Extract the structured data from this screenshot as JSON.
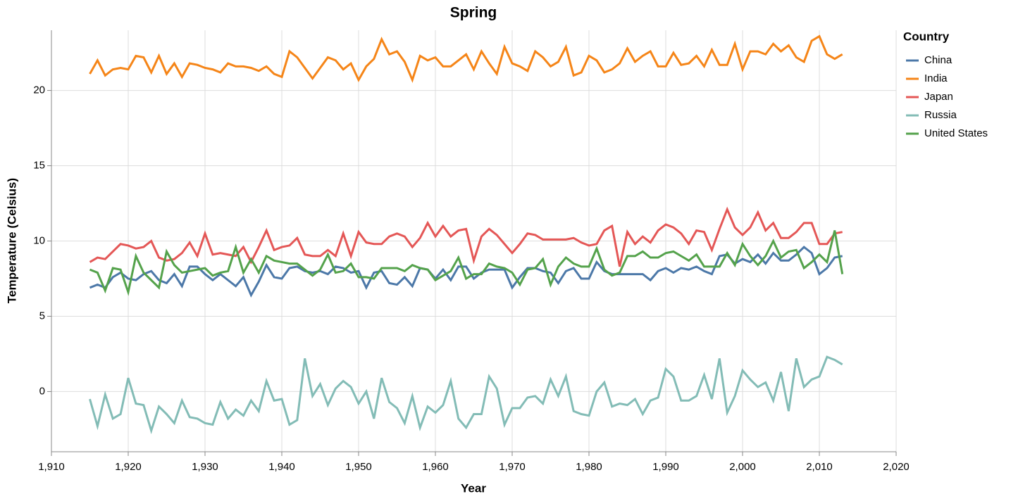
{
  "chart_data": {
    "type": "line",
    "title": "Spring",
    "x_label": "Year",
    "y_label": "Temperature (Celsius)",
    "legend_title": "Country",
    "legend": "top-right",
    "grid": true,
    "xlim": [
      1910,
      2020
    ],
    "ylim": [
      -4,
      24
    ],
    "xticks": [
      {
        "value": 1910,
        "label": "1,910"
      },
      {
        "value": 1920,
        "label": "1,920"
      },
      {
        "value": 1930,
        "label": "1,930"
      },
      {
        "value": 1940,
        "label": "1,940"
      },
      {
        "value": 1950,
        "label": "1,950"
      },
      {
        "value": 1960,
        "label": "1,960"
      },
      {
        "value": 1970,
        "label": "1,970"
      },
      {
        "value": 1980,
        "label": "1,980"
      },
      {
        "value": 1990,
        "label": "1,990"
      },
      {
        "value": 2000,
        "label": "2,000"
      },
      {
        "value": 2010,
        "label": "2,010"
      },
      {
        "value": 2020,
        "label": "2,020"
      }
    ],
    "yticks": [
      0,
      5,
      10,
      15,
      20
    ],
    "x": [
      1915,
      1916,
      1917,
      1918,
      1919,
      1920,
      1921,
      1922,
      1923,
      1924,
      1925,
      1926,
      1927,
      1928,
      1929,
      1930,
      1931,
      1932,
      1933,
      1934,
      1935,
      1936,
      1937,
      1938,
      1939,
      1940,
      1941,
      1942,
      1943,
      1944,
      1945,
      1946,
      1947,
      1948,
      1949,
      1950,
      1951,
      1952,
      1953,
      1954,
      1955,
      1956,
      1957,
      1958,
      1959,
      1960,
      1961,
      1962,
      1963,
      1964,
      1965,
      1966,
      1967,
      1968,
      1969,
      1970,
      1971,
      1972,
      1973,
      1974,
      1975,
      1976,
      1977,
      1978,
      1979,
      1980,
      1981,
      1982,
      1983,
      1984,
      1985,
      1986,
      1987,
      1988,
      1989,
      1990,
      1991,
      1992,
      1993,
      1994,
      1995,
      1996,
      1997,
      1998,
      1999,
      2000,
      2001,
      2002,
      2003,
      2004,
      2005,
      2006,
      2007,
      2008,
      2009,
      2010,
      2011,
      2012,
      2013
    ],
    "series": [
      {
        "name": "China",
        "color": "#4c78a8",
        "values": [
          6.9,
          7.1,
          6.9,
          7.6,
          7.9,
          7.5,
          7.4,
          7.8,
          8.0,
          7.4,
          7.2,
          7.8,
          7.0,
          8.3,
          8.3,
          7.8,
          7.4,
          7.8,
          7.4,
          7.0,
          7.6,
          6.4,
          7.3,
          8.4,
          7.6,
          7.5,
          8.2,
          8.3,
          8.0,
          7.9,
          8.0,
          7.8,
          8.3,
          8.2,
          7.9,
          8.0,
          6.9,
          7.9,
          8.0,
          7.2,
          7.1,
          7.6,
          7.0,
          8.2,
          8.1,
          7.5,
          8.1,
          7.4,
          8.3,
          8.3,
          7.5,
          7.9,
          8.1,
          8.1,
          8.1,
          6.9,
          7.6,
          8.2,
          8.2,
          8.0,
          7.9,
          7.2,
          8.0,
          8.2,
          7.5,
          7.5,
          8.6,
          8.0,
          7.8,
          7.8,
          7.8,
          7.8,
          7.8,
          7.4,
          8.0,
          8.2,
          7.9,
          8.2,
          8.1,
          8.3,
          8.0,
          7.8,
          9.0,
          9.1,
          8.5,
          8.8,
          8.6,
          9.1,
          8.5,
          9.2,
          8.7,
          8.7,
          9.1,
          9.6,
          9.2,
          7.8,
          8.2,
          8.9,
          9.0
        ]
      },
      {
        "name": "India",
        "color": "#f58518",
        "values": [
          21.1,
          22.0,
          21.0,
          21.4,
          21.5,
          21.4,
          22.3,
          22.2,
          21.2,
          22.3,
          21.1,
          21.8,
          20.9,
          21.8,
          21.7,
          21.5,
          21.4,
          21.2,
          21.8,
          21.6,
          21.6,
          21.5,
          21.3,
          21.6,
          21.1,
          20.9,
          22.6,
          22.2,
          21.5,
          20.8,
          21.5,
          22.2,
          22.0,
          21.4,
          21.8,
          20.7,
          21.6,
          22.1,
          23.4,
          22.4,
          22.6,
          21.9,
          20.7,
          22.3,
          22.0,
          22.2,
          21.6,
          21.6,
          22.0,
          22.4,
          21.4,
          22.6,
          21.8,
          21.1,
          22.9,
          21.8,
          21.6,
          21.3,
          22.6,
          22.2,
          21.6,
          21.9,
          22.9,
          21.0,
          21.2,
          22.3,
          22.0,
          21.2,
          21.4,
          21.8,
          22.8,
          21.9,
          22.3,
          22.6,
          21.6,
          21.6,
          22.5,
          21.7,
          21.8,
          22.3,
          21.6,
          22.7,
          21.7,
          21.7,
          23.1,
          21.4,
          22.6,
          22.6,
          22.4,
          23.1,
          22.6,
          23.0,
          22.2,
          21.9,
          23.3,
          23.6,
          22.4,
          22.1,
          22.4
        ]
      },
      {
        "name": "Japan",
        "color": "#e45756",
        "values": [
          8.6,
          8.9,
          8.8,
          9.3,
          9.8,
          9.7,
          9.5,
          9.6,
          10.0,
          8.9,
          8.7,
          8.8,
          9.2,
          9.9,
          9.0,
          10.5,
          9.1,
          9.2,
          9.1,
          9.0,
          9.6,
          8.6,
          9.6,
          10.7,
          9.4,
          9.6,
          9.7,
          10.2,
          9.1,
          9.0,
          9.0,
          9.4,
          9.0,
          10.5,
          9.0,
          10.6,
          9.9,
          9.8,
          9.8,
          10.3,
          10.5,
          10.3,
          9.6,
          10.2,
          11.2,
          10.3,
          11.0,
          10.3,
          10.7,
          10.8,
          8.7,
          10.3,
          10.8,
          10.4,
          9.8,
          9.2,
          9.8,
          10.5,
          10.4,
          10.1,
          10.1,
          10.1,
          10.1,
          10.2,
          9.9,
          9.7,
          9.8,
          10.7,
          11.0,
          8.3,
          10.6,
          9.8,
          10.3,
          9.9,
          10.7,
          11.1,
          10.9,
          10.5,
          9.8,
          10.7,
          10.6,
          9.4,
          10.8,
          12.1,
          10.9,
          10.4,
          10.9,
          11.9,
          10.7,
          11.2,
          10.2,
          10.2,
          10.6,
          11.2,
          11.2,
          9.8,
          9.8,
          10.5,
          10.6
        ]
      },
      {
        "name": "Russia",
        "color": "#83bcb6",
        "values": [
          -0.5,
          -2.3,
          -0.2,
          -1.8,
          -1.5,
          0.9,
          -0.8,
          -0.9,
          -2.6,
          -1.0,
          -1.5,
          -2.1,
          -0.6,
          -1.7,
          -1.8,
          -2.1,
          -2.2,
          -0.7,
          -1.8,
          -1.2,
          -1.6,
          -0.6,
          -1.3,
          0.7,
          -0.6,
          -0.5,
          -2.2,
          -1.9,
          2.2,
          -0.3,
          0.5,
          -0.9,
          0.2,
          0.7,
          0.3,
          -0.8,
          0.0,
          -1.8,
          0.9,
          -0.7,
          -1.1,
          -2.1,
          -0.3,
          -2.4,
          -1.0,
          -1.4,
          -0.9,
          0.7,
          -1.8,
          -2.4,
          -1.5,
          -1.5,
          1.0,
          0.2,
          -2.2,
          -1.1,
          -1.1,
          -0.4,
          -0.3,
          -0.8,
          0.8,
          -0.3,
          1.0,
          -1.3,
          -1.5,
          -1.6,
          0.0,
          0.6,
          -1.0,
          -0.8,
          -0.9,
          -0.5,
          -1.5,
          -0.6,
          -0.4,
          1.5,
          1.0,
          -0.6,
          -0.6,
          -0.3,
          1.1,
          -0.5,
          2.2,
          -1.4,
          -0.3,
          1.4,
          0.8,
          0.3,
          0.6,
          -0.6,
          1.3,
          -1.3,
          2.2,
          0.3,
          0.8,
          1.0,
          2.3,
          2.1,
          1.8
        ]
      },
      {
        "name": "United States",
        "color": "#54a24b",
        "values": [
          8.1,
          7.9,
          6.7,
          8.2,
          8.1,
          6.6,
          9.0,
          7.9,
          7.4,
          6.9,
          9.3,
          8.4,
          7.9,
          8.0,
          8.1,
          8.2,
          7.7,
          7.9,
          8.0,
          9.6,
          7.9,
          8.8,
          7.9,
          9.0,
          8.7,
          8.6,
          8.5,
          8.5,
          8.1,
          7.7,
          8.1,
          9.1,
          7.9,
          8.0,
          8.5,
          7.6,
          7.6,
          7.5,
          8.2,
          8.2,
          8.2,
          8.0,
          8.4,
          8.2,
          8.1,
          7.4,
          7.7,
          8.0,
          8.9,
          7.5,
          7.8,
          7.8,
          8.5,
          8.3,
          8.2,
          7.9,
          7.1,
          8.1,
          8.2,
          8.8,
          7.1,
          8.3,
          8.9,
          8.5,
          8.3,
          8.3,
          9.5,
          8.1,
          7.7,
          7.9,
          9.0,
          9.0,
          9.3,
          8.9,
          8.9,
          9.2,
          9.3,
          9.0,
          8.7,
          9.1,
          8.3,
          8.3,
          8.3,
          9.2,
          8.4,
          9.8,
          9.0,
          8.4,
          9.0,
          10.0,
          8.9,
          9.3,
          9.4,
          8.2,
          8.6,
          9.1,
          8.6,
          10.7,
          7.8
        ]
      }
    ]
  }
}
